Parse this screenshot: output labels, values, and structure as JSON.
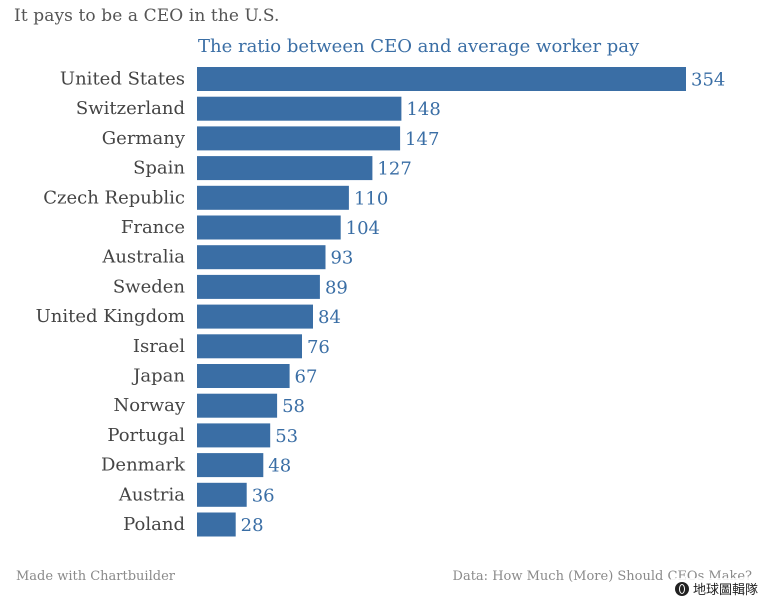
{
  "chart_data": {
    "type": "bar",
    "orientation": "horizontal",
    "title": "It pays to be a CEO in the U.S.",
    "subtitle": "The ratio between CEO and average worker pay",
    "categories": [
      "United States",
      "Switzerland",
      "Germany",
      "Spain",
      "Czech Republic",
      "France",
      "Australia",
      "Sweden",
      "United Kingdom",
      "Israel",
      "Japan",
      "Norway",
      "Portugal",
      "Denmark",
      "Austria",
      "Poland"
    ],
    "values": [
      354,
      148,
      147,
      127,
      110,
      104,
      93,
      89,
      84,
      76,
      67,
      58,
      53,
      48,
      36,
      28
    ],
    "xlim": [
      0,
      354
    ],
    "grid": false,
    "legend": "none",
    "bar_color": "#3a6ea5",
    "label_color": "#3a6ea5",
    "category_color": "#444444"
  },
  "footer": {
    "credit": "Made with Chartbuilder",
    "source": "Data: How Much (More) Should CEOs Make?"
  },
  "watermark": {
    "text": "地球圖輯隊"
  }
}
